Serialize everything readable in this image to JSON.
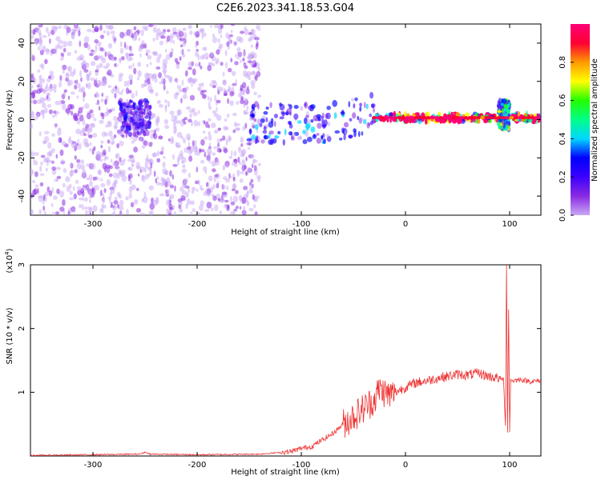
{
  "title": "C2E6.2023.341.18.53.G04",
  "chart_data": [
    {
      "type": "heatmap",
      "xlabel": "Height of straight line (km)",
      "ylabel": "Frequency (Hz)",
      "xlim": [
        -360,
        130
      ],
      "ylim": [
        -50,
        50
      ],
      "xticks": [
        -300,
        -200,
        -100,
        0,
        100
      ],
      "yticks": [
        -40,
        -20,
        0,
        20,
        40
      ],
      "colorbar": {
        "label": "Normalized spectral amplitude",
        "range": [
          0.0,
          1.0
        ],
        "ticks": [
          0.0,
          0.2,
          0.4,
          0.6,
          0.8
        ],
        "colormap": [
          "#ffffff",
          "#c9a8f5",
          "#8a2be2",
          "#3b00ff",
          "#0000ff",
          "#00d7ff",
          "#00ff88",
          "#22ff00",
          "#ffff00",
          "#ff9900",
          "#ff0033",
          "#ff0077"
        ]
      },
      "regions": [
        {
          "x": [
            -360,
            -140
          ],
          "freq_band": [
            -50,
            50
          ],
          "amplitude": 0.12
        },
        {
          "x": [
            -275,
            -245
          ],
          "freq_band": [
            -8,
            10
          ],
          "amplitude": 0.25
        },
        {
          "x": [
            -150,
            -30
          ],
          "freq_band": [
            -12,
            8
          ],
          "amplitude": 0.3
        },
        {
          "x": [
            -30,
            130
          ],
          "freq_band": [
            -1,
            3
          ],
          "amplitude": 0.9
        },
        {
          "x": [
            90,
            100
          ],
          "freq_band": [
            -5,
            10
          ],
          "amplitude": 0.5
        }
      ]
    },
    {
      "type": "line",
      "xlabel": "Height of straight line (km)",
      "ylabel": "SNR (10 * v/v)",
      "y_multiplier": "(x10^4)",
      "y_multiplier_base": "(x10",
      "y_multiplier_exp": "4",
      "y_multiplier_close": ")",
      "xlim": [
        -360,
        130
      ],
      "ylim": [
        0,
        3
      ],
      "xticks": [
        -300,
        -200,
        -100,
        0,
        100
      ],
      "yticks": [
        1,
        2,
        3
      ],
      "color": "#ee3333",
      "series": [
        {
          "x": [
            -360,
            -300,
            -255,
            -250,
            -245,
            -200,
            -140,
            -110,
            -100,
            -90,
            -80,
            -70,
            -60,
            -50,
            -40,
            -30,
            -25,
            -20,
            -15,
            -10,
            0,
            10,
            20,
            30,
            40,
            50,
            60,
            70,
            80,
            90,
            94,
            96,
            97,
            98,
            99,
            100,
            101,
            103,
            110,
            120,
            130
          ],
          "y": [
            0.01,
            0.02,
            0.03,
            0.06,
            0.03,
            0.02,
            0.03,
            0.07,
            0.12,
            0.15,
            0.25,
            0.35,
            0.5,
            0.62,
            0.75,
            0.88,
            1.05,
            1.0,
            0.95,
            1.0,
            1.08,
            1.15,
            1.18,
            1.22,
            1.25,
            1.28,
            1.27,
            1.3,
            1.25,
            1.22,
            1.2,
            0.5,
            3.0,
            0.35,
            2.3,
            0.4,
            1.2,
            1.18,
            1.2,
            1.17,
            1.18
          ]
        }
      ]
    }
  ]
}
